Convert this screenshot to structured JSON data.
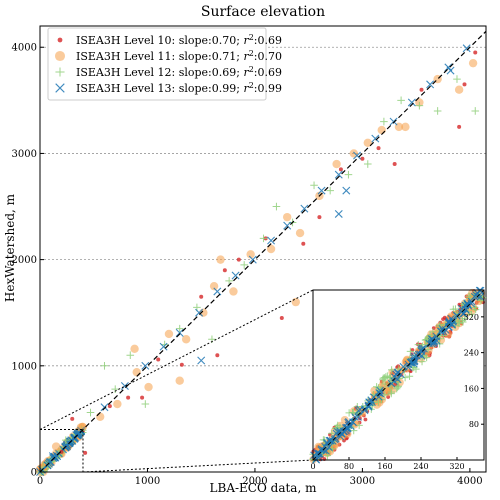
{
  "chart_data": {
    "type": "scatter",
    "title": "Surface elevation",
    "xlabel": "LBA-ECO data, m",
    "ylabel": "HexWatershed, m",
    "xlim": [
      0,
      4150
    ],
    "ylim": [
      0,
      4200
    ],
    "xticks": [
      0,
      1000,
      2000,
      3000,
      4000
    ],
    "yticks": [
      0,
      1000,
      2000,
      3000,
      4000
    ],
    "grid": "horizontal dotted",
    "legend_position": "top-left",
    "reference_line": "1:1 dashed",
    "series": [
      {
        "label_prefix": "ISEA3H Level 10: slope:0.70; ",
        "r2_label": "r",
        "r2_value": ":0.69",
        "marker": "dot",
        "color": "#d62728",
        "points": [
          [
            200,
            190
          ],
          [
            650,
            620
          ],
          [
            820,
            700
          ],
          [
            1100,
            1060
          ],
          [
            1320,
            1010
          ],
          [
            1500,
            1650
          ],
          [
            1650,
            1100
          ],
          [
            1850,
            2000
          ],
          [
            2100,
            2200
          ],
          [
            2250,
            1450
          ],
          [
            2450,
            2150
          ],
          [
            2600,
            2400
          ],
          [
            2800,
            2850
          ],
          [
            3000,
            2950
          ],
          [
            3150,
            3050
          ],
          [
            3300,
            2900
          ],
          [
            3550,
            3600
          ],
          [
            3900,
            3250
          ],
          [
            3950,
            3650
          ],
          [
            4050,
            3950
          ],
          [
            300,
            500
          ],
          [
            420,
            180
          ],
          [
            950,
            700
          ],
          [
            1720,
            1900
          ]
        ]
      },
      {
        "label_prefix": "ISEA3H Level 11: slope:0.71; ",
        "r2_label": "r",
        "r2_value": ":0.70",
        "marker": "circle",
        "color": "#f5a04a",
        "points": [
          [
            150,
            240
          ],
          [
            380,
            420
          ],
          [
            560,
            520
          ],
          [
            720,
            640
          ],
          [
            900,
            940
          ],
          [
            1010,
            800
          ],
          [
            1200,
            1300
          ],
          [
            1360,
            1250
          ],
          [
            1520,
            1500
          ],
          [
            1620,
            1750
          ],
          [
            1680,
            2000
          ],
          [
            1800,
            1700
          ],
          [
            1960,
            2050
          ],
          [
            2150,
            2100
          ],
          [
            2300,
            2400
          ],
          [
            2420,
            2250
          ],
          [
            2600,
            2600
          ],
          [
            2760,
            2900
          ],
          [
            2920,
            3000
          ],
          [
            3050,
            3100
          ],
          [
            3180,
            3220
          ],
          [
            3340,
            3250
          ],
          [
            3400,
            3250
          ],
          [
            3530,
            3480
          ],
          [
            3700,
            3700
          ],
          [
            3900,
            3600
          ],
          [
            4030,
            3850
          ],
          [
            880,
            1160
          ],
          [
            1300,
            860
          ],
          [
            2380,
            1600
          ]
        ]
      },
      {
        "label_prefix": "ISEA3H Level 12: slope:0.69; ",
        "r2_label": "r",
        "r2_value": ":0.69",
        "marker": "plus",
        "color": "#8fcf7a",
        "points": [
          [
            240,
            300
          ],
          [
            470,
            560
          ],
          [
            700,
            780
          ],
          [
            840,
            1100
          ],
          [
            980,
            640
          ],
          [
            1160,
            1200
          ],
          [
            1300,
            1350
          ],
          [
            1460,
            1550
          ],
          [
            1600,
            1250
          ],
          [
            1760,
            1800
          ],
          [
            1900,
            1950
          ],
          [
            2080,
            2200
          ],
          [
            2200,
            2500
          ],
          [
            2350,
            2350
          ],
          [
            2550,
            2700
          ],
          [
            2700,
            2650
          ],
          [
            2870,
            2800
          ],
          [
            3050,
            2900
          ],
          [
            3200,
            3300
          ],
          [
            3360,
            3500
          ],
          [
            3530,
            3450
          ],
          [
            3700,
            3400
          ],
          [
            3880,
            3700
          ],
          [
            4050,
            3400
          ],
          [
            600,
            1000
          ]
        ]
      },
      {
        "label_prefix": "ISEA3H Level 13: slope:0.99; ",
        "r2_label": "r",
        "r2_value": ":0.99",
        "marker": "x",
        "color": "#1f77b4",
        "points": [
          [
            120,
            150
          ],
          [
            350,
            360
          ],
          [
            600,
            610
          ],
          [
            790,
            810
          ],
          [
            980,
            1000
          ],
          [
            1150,
            1180
          ],
          [
            1300,
            1310
          ],
          [
            1480,
            1500
          ],
          [
            1650,
            1700
          ],
          [
            1820,
            1850
          ],
          [
            1980,
            2000
          ],
          [
            2150,
            2180
          ],
          [
            2300,
            2320
          ],
          [
            2460,
            2480
          ],
          [
            2620,
            2650
          ],
          [
            2780,
            2800
          ],
          [
            2950,
            2980
          ],
          [
            3120,
            3140
          ],
          [
            3290,
            3300
          ],
          [
            3460,
            3480
          ],
          [
            3630,
            3650
          ],
          [
            3800,
            3810
          ],
          [
            3970,
            3990
          ],
          [
            1500,
            1050
          ],
          [
            2780,
            2430
          ],
          [
            2850,
            2650
          ],
          [
            3820,
            3780
          ]
        ]
      }
    ],
    "inset": {
      "xlim": [
        0,
        380
      ],
      "ylim": [
        0,
        380
      ],
      "xticks": [
        0,
        80,
        160,
        240,
        320
      ],
      "yticks": [
        80,
        160,
        240,
        320
      ],
      "source_region_x": [
        0,
        400
      ],
      "source_region_y": [
        0,
        400
      ],
      "points_per_series": 140
    }
  }
}
